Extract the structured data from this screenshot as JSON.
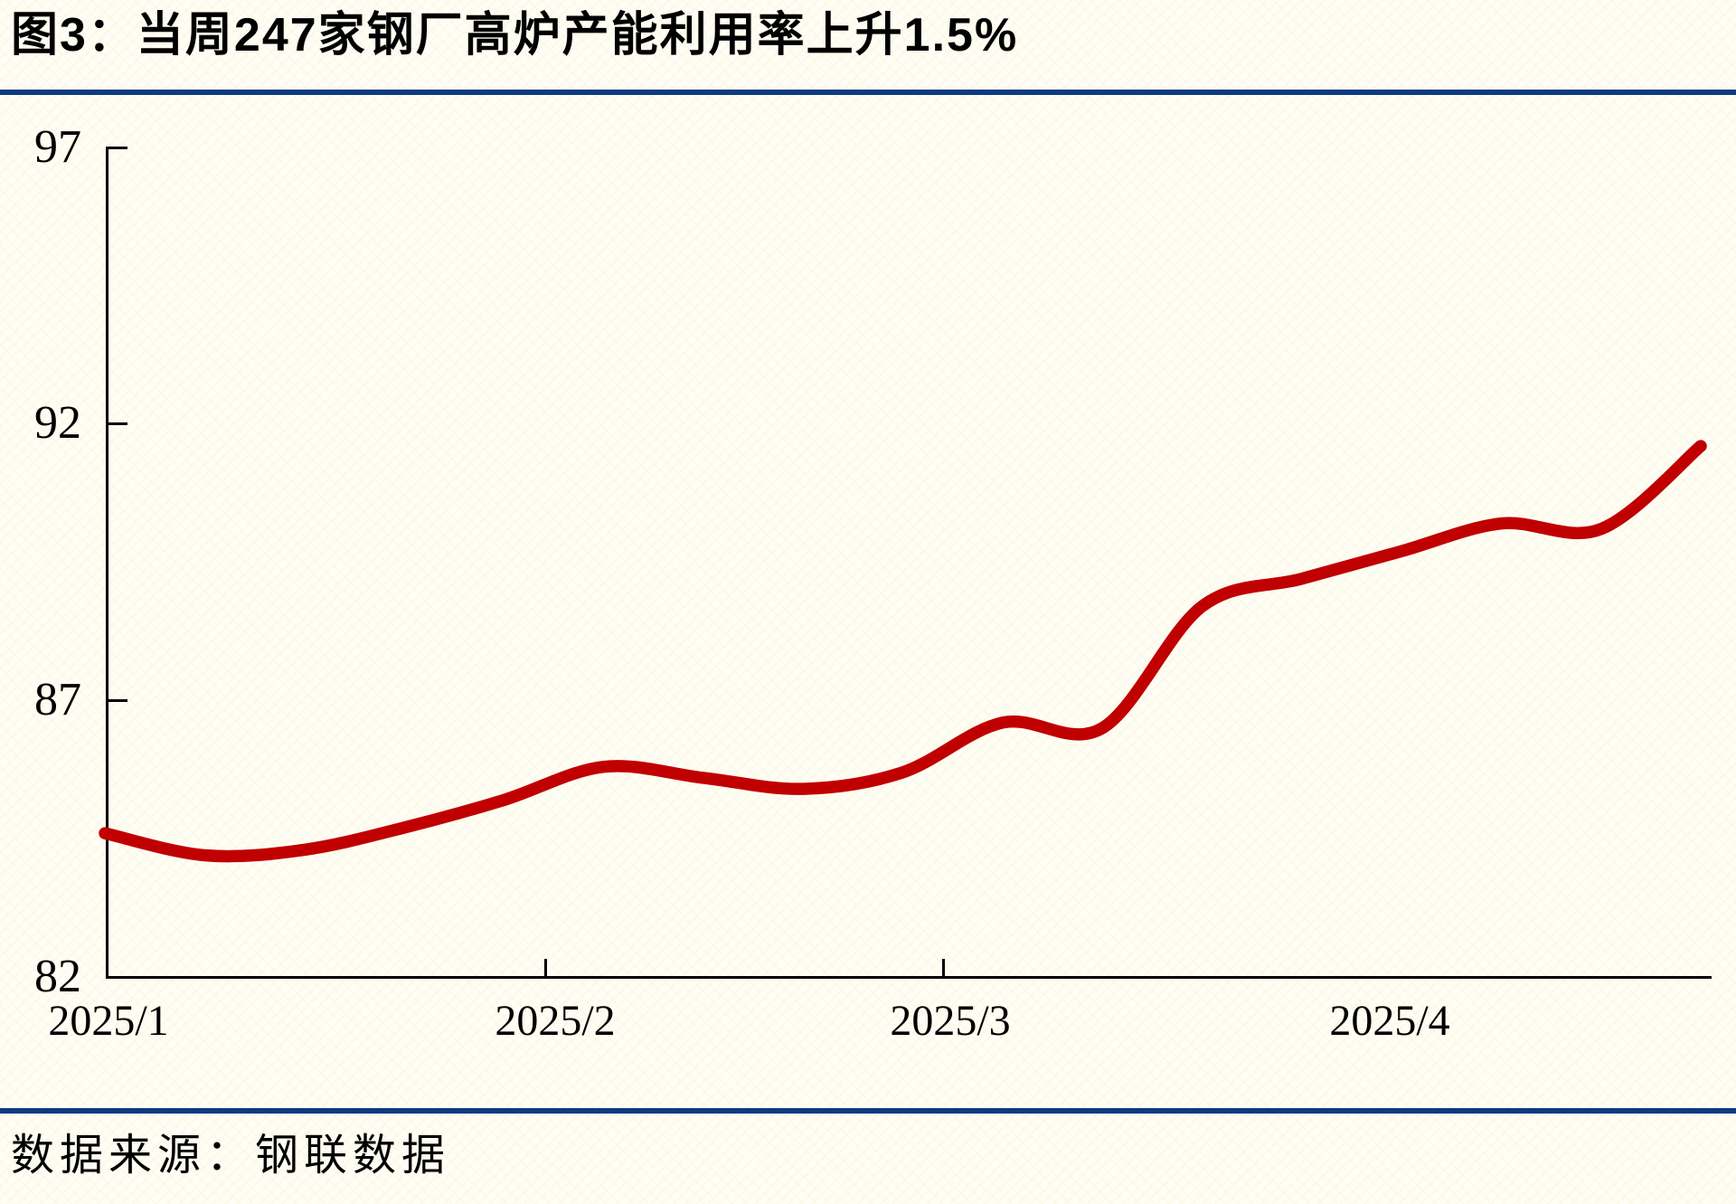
{
  "page": {
    "figure_title": "图3：当周247家钢厂高炉产能利用率上升1.5%",
    "source_label": "数据来源：钢联数据"
  },
  "chart_data": {
    "type": "line",
    "title": "图3：当周247家钢厂高炉产能利用率上升1.5%",
    "series": [
      {
        "name": "247家钢厂高炉产能利用率(%)",
        "values": [
          84.6,
          84.2,
          84.3,
          84.7,
          85.2,
          85.8,
          85.6,
          85.4,
          85.7,
          86.6,
          86.5,
          88.7,
          89.2,
          89.7,
          90.2,
          90.1,
          91.6
        ]
      }
    ],
    "ylim": [
      82,
      97
    ],
    "yticks": [
      97,
      92,
      87,
      82
    ],
    "xticks": [
      "2025/1",
      "2025/2",
      "2025/3",
      "2025/4"
    ],
    "line_color": "#c00000",
    "axis_color": "#000000",
    "accent_rule_color": "#0d3b80",
    "grid": false,
    "legend": "none",
    "xlabel": "",
    "ylabel": ""
  }
}
